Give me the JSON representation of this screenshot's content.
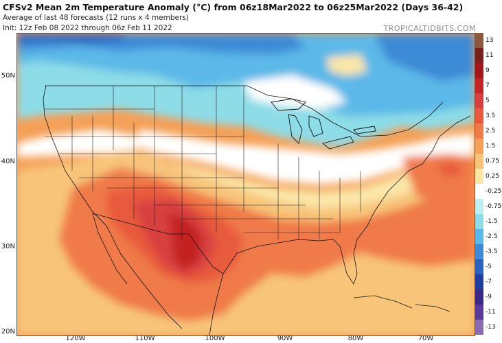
{
  "title": "CFSv2 Mean 2m Temperature Anomaly (°C) from 06z18Mar2022 to 06z25Mar2022 (Days 36-42)",
  "subtitle_1": "Average of last 48 forecasts (12 runs x 4 members)",
  "subtitle_2": "Init: 12z Feb 08 2022 through 06z Feb 11 2022",
  "brand": "TROPICALTIDBITS.COM",
  "lat_labels": [
    "50N",
    "40N",
    "30N",
    "20N"
  ],
  "lon_labels": [
    "120W",
    "110W",
    "100W",
    "90W",
    "80W",
    "70W"
  ],
  "colorbar": {
    "labels": [
      "13",
      "11",
      "9",
      "7",
      "5",
      "3.5",
      "2.5",
      "1.5",
      "0.75",
      "0.25",
      "-0.25",
      "-0.75",
      "-1.5",
      "-2.5",
      "-3.5",
      "-5",
      "-7",
      "-9",
      "-11",
      "-13"
    ],
    "colors": [
      "#8b5a3c",
      "#7a1e1e",
      "#a01818",
      "#c42424",
      "#d84040",
      "#e85a3e",
      "#f07a48",
      "#f5a058",
      "#f8c47a",
      "#fbe6a8",
      "#ffffff",
      "#bfeef0",
      "#8ddce8",
      "#5cb8e8",
      "#3e8ad6",
      "#2a62c0",
      "#1f3f9e",
      "#3a2a88",
      "#5a3a98",
      "#8c6ab0"
    ]
  }
}
